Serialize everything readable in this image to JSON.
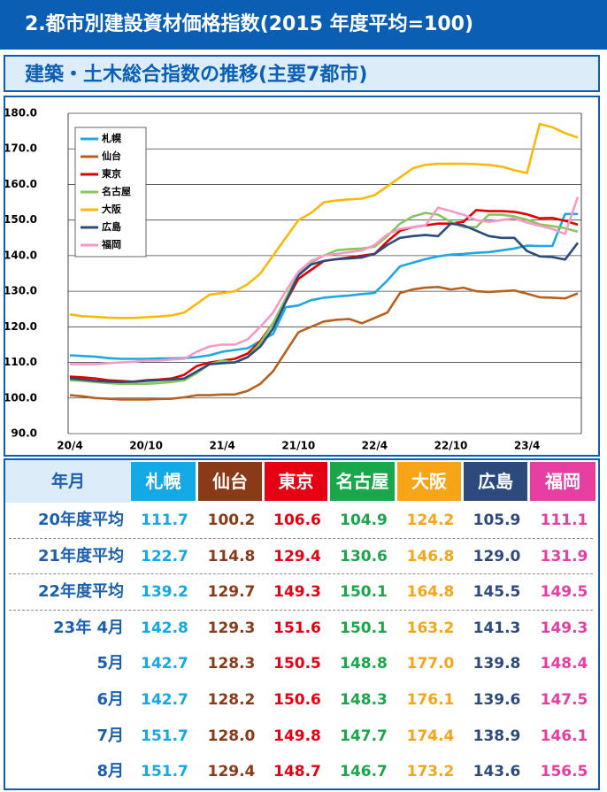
{
  "header": {
    "title": "2.都市別建設資材価格指数(2015 年度平均=100)",
    "subtitle": "建築・土木総合指数の推移(主要7都市)"
  },
  "chart_data": {
    "type": "line",
    "categories": [
      "20/4",
      null,
      null,
      null,
      null,
      null,
      "20/10",
      null,
      null,
      null,
      null,
      null,
      "21/4",
      null,
      null,
      null,
      null,
      null,
      "21/10",
      null,
      null,
      null,
      null,
      null,
      "22/4",
      null,
      null,
      null,
      null,
      null,
      "22/10",
      null,
      null,
      null,
      null,
      null,
      "23/4",
      null,
      null,
      null,
      null
    ],
    "series": [
      {
        "name": "札幌",
        "color": "#1fa8e0",
        "values": [
          112.0,
          111.8,
          111.6,
          111.2,
          111.0,
          111.0,
          111.0,
          111.1,
          111.1,
          111.2,
          111.5,
          112.0,
          113.0,
          113.5,
          114.0,
          116.0,
          118.0,
          125.5,
          126.0,
          127.5,
          128.2,
          128.5,
          128.8,
          129.2,
          129.5,
          133.0,
          137.0,
          138.0,
          139.0,
          139.8,
          140.3,
          140.5,
          140.8,
          141.0,
          141.5,
          142.0,
          142.8,
          142.7,
          142.7,
          151.7,
          151.7
        ]
      },
      {
        "name": "仙台",
        "color": "#b8601e",
        "values": [
          100.8,
          100.5,
          100.0,
          99.8,
          99.6,
          99.6,
          99.6,
          99.7,
          99.8,
          100.2,
          100.8,
          100.8,
          101.0,
          101.0,
          102.0,
          104.0,
          107.5,
          113.0,
          118.5,
          120.0,
          121.5,
          122.0,
          122.2,
          121.0,
          122.5,
          124.0,
          129.5,
          130.5,
          131.0,
          131.2,
          130.5,
          131.0,
          130.0,
          129.8,
          130.0,
          130.2,
          129.3,
          128.3,
          128.2,
          128.0,
          129.4
        ]
      },
      {
        "name": "東京",
        "color": "#e00000",
        "values": [
          106.0,
          105.8,
          105.5,
          105.0,
          104.8,
          104.6,
          105.0,
          105.2,
          105.5,
          106.5,
          109.0,
          110.0,
          110.5,
          111.0,
          112.5,
          116.0,
          121.0,
          127.0,
          133.5,
          136.0,
          138.5,
          139.0,
          139.5,
          140.0,
          140.5,
          144.0,
          147.0,
          148.0,
          148.5,
          149.0,
          149.0,
          149.5,
          152.8,
          152.5,
          152.5,
          152.3,
          151.6,
          150.5,
          150.6,
          149.8,
          148.7
        ]
      },
      {
        "name": "名古屋",
        "color": "#85c858",
        "values": [
          105.0,
          104.8,
          104.5,
          104.2,
          104.0,
          104.0,
          104.0,
          104.2,
          104.5,
          105.0,
          107.0,
          109.5,
          110.5,
          110.0,
          111.5,
          115.5,
          121.0,
          128.0,
          135.0,
          138.0,
          140.0,
          141.5,
          141.8,
          142.0,
          142.5,
          145.5,
          149.0,
          151.0,
          152.0,
          151.5,
          149.5,
          148.0,
          148.0,
          151.5,
          151.5,
          151.0,
          150.1,
          148.8,
          148.3,
          147.7,
          146.7
        ]
      },
      {
        "name": "大阪",
        "color": "#f7b90a",
        "values": [
          123.5,
          123.0,
          122.8,
          122.6,
          122.5,
          122.5,
          122.7,
          122.9,
          123.2,
          124.0,
          126.5,
          129.0,
          129.5,
          130.0,
          132.0,
          135.0,
          140.0,
          145.0,
          150.0,
          152.0,
          155.0,
          155.5,
          155.8,
          156.0,
          157.0,
          159.5,
          162.0,
          164.5,
          165.5,
          165.8,
          165.8,
          165.8,
          165.7,
          165.5,
          165.0,
          164.0,
          163.2,
          177.0,
          176.1,
          174.4,
          173.2
        ]
      },
      {
        "name": "広島",
        "color": "#2b4b7b",
        "values": [
          105.5,
          105.2,
          104.8,
          104.6,
          104.5,
          104.6,
          104.8,
          105.0,
          105.2,
          105.5,
          107.5,
          109.5,
          109.8,
          110.0,
          111.5,
          114.5,
          119.5,
          127.0,
          134.5,
          137.5,
          138.5,
          139.0,
          139.2,
          139.5,
          140.5,
          143.0,
          145.0,
          145.5,
          145.8,
          145.5,
          149.0,
          148.5,
          147.0,
          145.5,
          145.0,
          145.0,
          141.3,
          139.8,
          139.6,
          138.9,
          143.6
        ]
      },
      {
        "name": "福岡",
        "color": "#f59ac8",
        "values": [
          109.5,
          109.5,
          109.5,
          109.8,
          110.0,
          110.2,
          110.5,
          110.5,
          110.8,
          111.0,
          113.0,
          114.5,
          115.0,
          115.0,
          116.5,
          120.0,
          124.0,
          130.0,
          135.5,
          138.5,
          140.0,
          140.5,
          141.0,
          141.5,
          143.0,
          146.0,
          147.5,
          148.0,
          148.5,
          153.5,
          152.5,
          151.5,
          150.0,
          149.5,
          150.0,
          150.5,
          149.3,
          148.4,
          147.5,
          146.1,
          156.5
        ]
      }
    ],
    "ylim": [
      90,
      180
    ],
    "yticks": [
      {
        "value": 90,
        "label": "90.0"
      },
      {
        "value": 100,
        "label": "100.0"
      },
      {
        "value": 110,
        "label": "110.0"
      },
      {
        "value": 120,
        "label": "120.0"
      },
      {
        "value": 130,
        "label": "130.0"
      },
      {
        "value": 140,
        "label": "140.0"
      },
      {
        "value": 150,
        "label": "150.0"
      },
      {
        "value": 160,
        "label": "160.0"
      },
      {
        "value": 170,
        "label": "170.0"
      },
      {
        "value": 180,
        "label": "180.0"
      }
    ],
    "grid": true,
    "legend": "upper left"
  },
  "table": {
    "corner": "年月",
    "columns": [
      {
        "name": "札幌",
        "color": "#12a9e6"
      },
      {
        "name": "仙台",
        "color": "#8b3a17"
      },
      {
        "name": "東京",
        "color": "#e60012"
      },
      {
        "name": "名古屋",
        "color": "#1aa64a"
      },
      {
        "name": "大阪",
        "color": "#f8a419"
      },
      {
        "name": "広島",
        "color": "#2c4a7c"
      },
      {
        "name": "福岡",
        "color": "#e63ea1"
      }
    ],
    "rows": [
      {
        "label": "20年度平均",
        "cells": [
          "111.7",
          "100.2",
          "106.6",
          "104.9",
          "124.2",
          "105.9",
          "111.1"
        ]
      },
      {
        "label": "21年度平均",
        "cells": [
          "122.7",
          "114.8",
          "129.4",
          "130.6",
          "146.8",
          "129.0",
          "131.9"
        ]
      },
      {
        "label": "22年度平均",
        "cells": [
          "139.2",
          "129.7",
          "149.3",
          "150.1",
          "164.8",
          "145.5",
          "149.5"
        ]
      },
      {
        "label": "23年 4月",
        "cells": [
          "142.8",
          "129.3",
          "151.6",
          "150.1",
          "163.2",
          "141.3",
          "149.3"
        ]
      },
      {
        "label": "5月",
        "cells": [
          "142.7",
          "128.3",
          "150.5",
          "148.8",
          "177.0",
          "139.8",
          "148.4"
        ]
      },
      {
        "label": "6月",
        "cells": [
          "142.7",
          "128.2",
          "150.6",
          "148.3",
          "176.1",
          "139.6",
          "147.5"
        ]
      },
      {
        "label": "7月",
        "cells": [
          "151.7",
          "128.0",
          "149.8",
          "147.7",
          "174.4",
          "138.9",
          "146.1"
        ]
      },
      {
        "label": "8月",
        "cells": [
          "151.7",
          "129.4",
          "148.7",
          "146.7",
          "173.2",
          "143.6",
          "156.5"
        ]
      }
    ]
  }
}
